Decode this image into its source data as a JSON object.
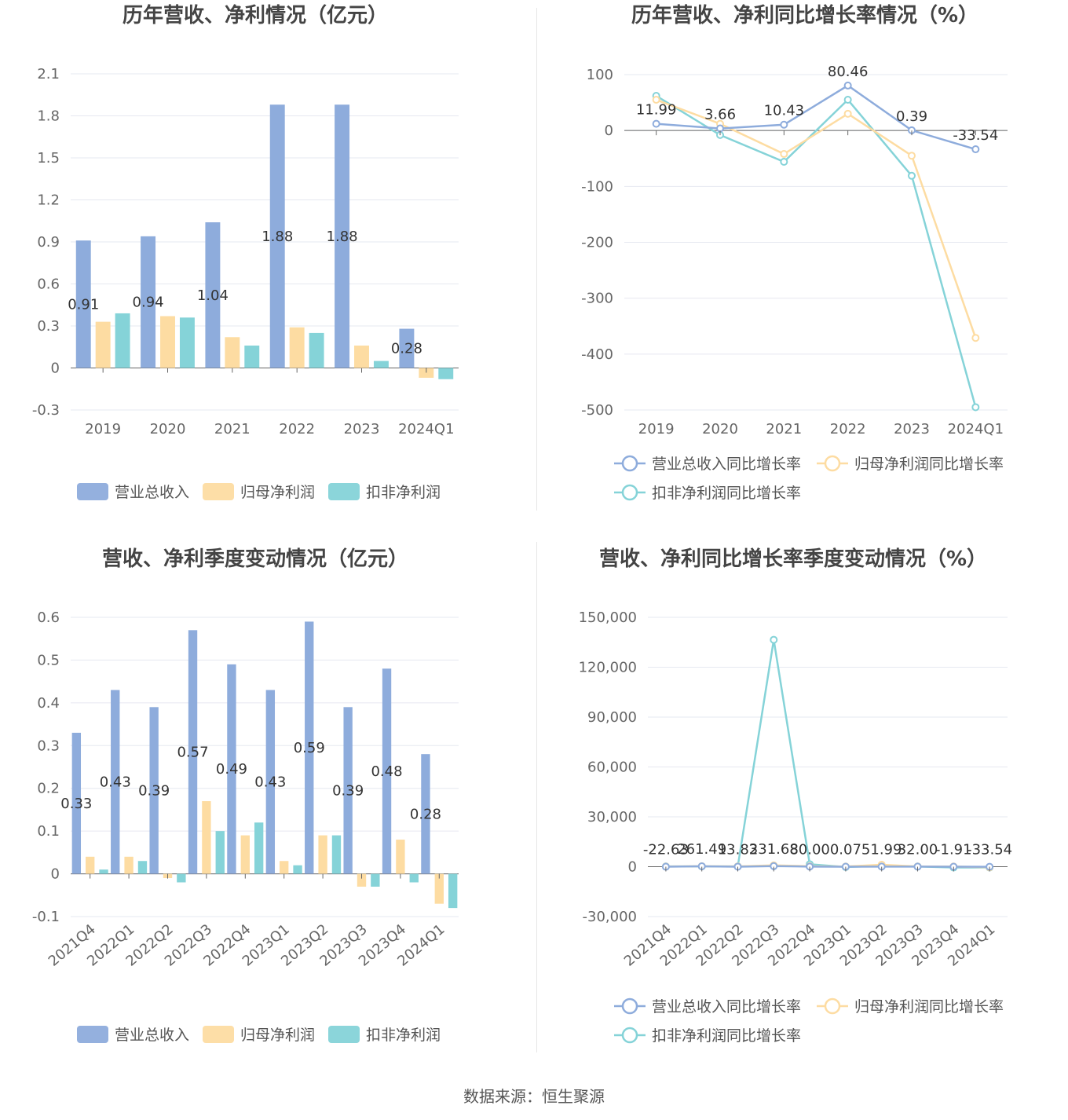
{
  "source_text": "数据来源：恒生聚源",
  "colors": {
    "revenue": "#8eacdc",
    "netprofit": "#fddca2",
    "deducted": "#85d3d8",
    "grid": "#e6e8f0",
    "axis": "#666666"
  },
  "chart_data": [
    {
      "id": "annual_values",
      "type": "bar",
      "title": "历年营收、净利情况（亿元）",
      "categories": [
        "2019",
        "2020",
        "2021",
        "2022",
        "2023",
        "2024Q1"
      ],
      "ylim": [
        -0.3,
        2.1
      ],
      "yticks": [
        "2.1",
        "1.8",
        "1.5",
        "1.2",
        "0.9",
        "0.6",
        "0.3",
        "0",
        "-0.3"
      ],
      "series": [
        {
          "name": "营业总收入",
          "values": [
            0.91,
            0.94,
            1.04,
            1.88,
            1.88,
            0.28
          ],
          "labels": [
            "0.91",
            "0.94",
            "1.04",
            "1.88",
            "1.88",
            "0.28"
          ]
        },
        {
          "name": "归母净利润",
          "values": [
            0.33,
            0.37,
            0.22,
            0.29,
            0.16,
            -0.07
          ]
        },
        {
          "name": "扣非净利润",
          "values": [
            0.39,
            0.36,
            0.16,
            0.25,
            0.05,
            -0.08
          ]
        }
      ],
      "legend": "bottom",
      "grid": true
    },
    {
      "id": "annual_growth",
      "type": "line",
      "title": "历年营收、净利同比增长率情况（%）",
      "categories": [
        "2019",
        "2020",
        "2021",
        "2022",
        "2023",
        "2024Q1"
      ],
      "ylim": [
        -500,
        100
      ],
      "yticks": [
        "100",
        "0",
        "-100",
        "-200",
        "-300",
        "-400",
        "-500"
      ],
      "series": [
        {
          "name": "营业总收入同比增长率",
          "values": [
            11.99,
            3.66,
            10.43,
            80.46,
            0.39,
            -33.54
          ],
          "labels": [
            "11.99",
            "3.66",
            "10.43",
            "80.46",
            "0.39",
            "-33.54"
          ]
        },
        {
          "name": "归母净利润同比增长率",
          "values": [
            55,
            12,
            -42,
            30,
            -45,
            -371
          ]
        },
        {
          "name": "扣非净利润同比增长率",
          "values": [
            62,
            -8,
            -56,
            55,
            -81,
            -495
          ]
        }
      ],
      "legend": "bottom",
      "grid": true
    },
    {
      "id": "quarterly_values",
      "type": "bar",
      "title": "营收、净利季度变动情况（亿元）",
      "categories": [
        "2021Q4",
        "2022Q1",
        "2022Q2",
        "2022Q3",
        "2022Q4",
        "2023Q1",
        "2023Q2",
        "2023Q3",
        "2023Q4",
        "2024Q1"
      ],
      "ylim": [
        -0.1,
        0.6
      ],
      "yticks": [
        "0.6",
        "0.5",
        "0.4",
        "0.3",
        "0.2",
        "0.1",
        "0",
        "-0.1"
      ],
      "series": [
        {
          "name": "营业总收入",
          "values": [
            0.33,
            0.43,
            0.39,
            0.57,
            0.49,
            0.43,
            0.59,
            0.39,
            0.48,
            0.28
          ],
          "labels": [
            "0.33",
            "0.43",
            "0.39",
            "0.57",
            "0.49",
            "0.43",
            "0.59",
            "0.39",
            "0.48",
            "0.28"
          ]
        },
        {
          "name": "归母净利润",
          "values": [
            0.04,
            0.04,
            -0.01,
            0.17,
            0.09,
            0.03,
            0.09,
            -0.03,
            0.08,
            -0.07
          ]
        },
        {
          "name": "扣非净利润",
          "values": [
            0.01,
            0.03,
            -0.02,
            0.1,
            0.12,
            0.02,
            0.09,
            -0.03,
            -0.02,
            -0.08
          ]
        }
      ],
      "legend": "bottom",
      "grid": true
    },
    {
      "id": "quarterly_growth",
      "type": "line",
      "title": "营收、净利同比增长率季度变动情况（%）",
      "categories": [
        "2021Q4",
        "2022Q1",
        "2022Q2",
        "2022Q3",
        "2022Q4",
        "2023Q1",
        "2023Q2",
        "2023Q3",
        "2023Q4",
        "2024Q1"
      ],
      "ylim": [
        -30000,
        150000
      ],
      "yticks": [
        "150,000",
        "120,000",
        "90,000",
        "60,000",
        "30,000",
        "0",
        "-30,000"
      ],
      "series": [
        {
          "name": "营业总收入同比增长率",
          "values": [
            -22.63,
            261.49,
            13.82,
            331.68,
            80.0,
            0.07,
            51.99,
            32.0,
            -1.91,
            -33.54
          ],
          "labels": [
            "-22.63",
            "261.49",
            "13.82",
            "331.68",
            "80.00",
            "0.07",
            "51.99",
            "32.00",
            "-1.91",
            "-33.54"
          ]
        },
        {
          "name": "归母净利润同比增长率",
          "values": [
            100,
            300,
            200,
            800,
            300,
            100,
            1200,
            100,
            100,
            -371
          ]
        },
        {
          "name": "扣非净利润同比增长率",
          "values": [
            150,
            200,
            150,
            136500,
            1500,
            -200,
            500,
            100,
            -500,
            -495
          ]
        }
      ],
      "legend": "bottom",
      "grid": true
    }
  ]
}
